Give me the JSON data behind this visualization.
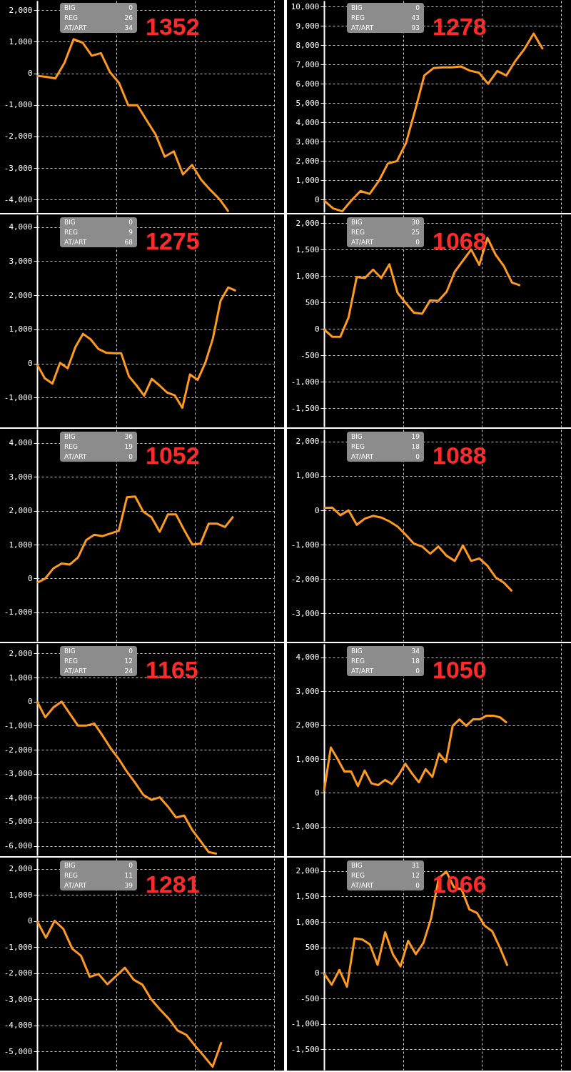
{
  "chart_data": [
    {
      "type": "line",
      "title": "1352",
      "annotations": [
        "BIG",
        "0",
        "REG",
        "26",
        "AT/ART",
        "34"
      ],
      "grid": true,
      "tick_labels": "y",
      "ylim": [
        -4400,
        2300
      ],
      "yticks": [
        {
          "value": -4000,
          "label": "-4,000"
        },
        {
          "value": -3000,
          "label": "-3,000"
        },
        {
          "value": -2000,
          "label": "-2,000"
        },
        {
          "value": -1000,
          "label": "-1,000"
        },
        0,
        {
          "value": 1000,
          "label": "1,000"
        },
        {
          "value": 2000,
          "label": "2,000"
        }
      ],
      "categories": [
        null,
        null,
        null,
        null,
        null,
        null,
        null,
        null,
        null,
        null,
        null,
        null,
        null,
        null,
        null,
        null,
        null,
        null,
        null,
        null,
        null,
        null,
        null,
        null,
        null,
        null,
        null
      ],
      "series": [
        {
          "color": "#ff9a1e",
          "values": [
            -80,
            -110,
            -160,
            330,
            1080,
            970,
            560,
            640,
            35,
            -310,
            -1010,
            -1010,
            -1480,
            -1940,
            -2640,
            -2470,
            -3200,
            -2900,
            -3370,
            -3690,
            -3980,
            -4380,
            null,
            null,
            null,
            null,
            null
          ]
        }
      ]
    },
    {
      "type": "line",
      "title": "1278",
      "annotations": [
        "BIG",
        "0",
        "REG",
        "43",
        "AT/ART",
        "93"
      ],
      "grid": true,
      "tick_labels": "y",
      "ylim": [
        -650,
        10300
      ],
      "yticks": [
        0,
        {
          "value": 1000,
          "label": "1,000"
        },
        {
          "value": 2000,
          "label": "2,000"
        },
        {
          "value": 3000,
          "label": "3,000"
        },
        {
          "value": 4000,
          "label": "4,000"
        },
        {
          "value": 5000,
          "label": "5,000"
        },
        {
          "value": 6000,
          "label": "6,000"
        },
        {
          "value": 7000,
          "label": "7,000"
        },
        {
          "value": 8000,
          "label": "8,000"
        },
        {
          "value": 9000,
          "label": "9,000"
        },
        {
          "value": 10000,
          "label": "10,000"
        }
      ],
      "categories": [
        null,
        null,
        null,
        null,
        null,
        null,
        null,
        null,
        null,
        null,
        null,
        null,
        null,
        null,
        null,
        null,
        null,
        null,
        null,
        null,
        null,
        null,
        null,
        null,
        null,
        null,
        null
      ],
      "series": [
        {
          "color": "#ff9a1e",
          "values": [
            -40,
            -450,
            -600,
            -40,
            450,
            300,
            960,
            1870,
            2000,
            2940,
            4640,
            6430,
            6810,
            6850,
            6850,
            6900,
            6680,
            6570,
            6000,
            6660,
            6430,
            7190,
            7810,
            8600,
            7790,
            null,
            null
          ]
        }
      ]
    },
    {
      "type": "line",
      "title": "1275",
      "annotations": [
        "BIG",
        "0",
        "REG",
        "9",
        "AT/ART",
        "68"
      ],
      "grid": true,
      "tick_labels": "y",
      "ylim": [
        -1850,
        4350
      ],
      "yticks": [
        {
          "value": -1000,
          "label": "-1,000"
        },
        0,
        {
          "value": 1000,
          "label": "1,000"
        },
        {
          "value": 2000,
          "label": "2,000"
        },
        {
          "value": 3000,
          "label": "3,000"
        },
        {
          "value": 4000,
          "label": "4,000"
        }
      ],
      "categories": [
        null,
        null,
        null,
        null,
        null,
        null,
        null,
        null,
        null,
        null,
        null,
        null,
        null,
        null,
        null,
        null,
        null,
        null,
        null,
        null,
        null,
        null,
        null,
        null,
        null,
        null,
        null,
        null,
        null,
        null,
        null,
        null
      ],
      "series": [
        {
          "color": "#ff9a1e",
          "values": [
            -30,
            -430,
            -590,
            20,
            -140,
            480,
            870,
            710,
            430,
            320,
            300,
            300,
            -370,
            -640,
            -940,
            -450,
            -640,
            -850,
            -930,
            -1300,
            -320,
            -480,
            20,
            740,
            1840,
            2230,
            2130,
            null,
            null,
            null,
            null,
            null
          ]
        }
      ]
    },
    {
      "type": "line",
      "title": "1068",
      "annotations": [
        "BIG",
        "30",
        "REG",
        "25",
        "AT/ART",
        "0"
      ],
      "grid": true,
      "tick_labels": "y",
      "ylim": [
        -1850,
        2150
      ],
      "yticks": [
        {
          "value": -1500,
          "label": "-1,500"
        },
        {
          "value": -1000,
          "label": "-1,000"
        },
        -500,
        0,
        500,
        {
          "value": 1000,
          "label": "1,000"
        },
        {
          "value": 1500,
          "label": "1,500"
        },
        {
          "value": 2000,
          "label": "2,000"
        }
      ],
      "categories": [
        null,
        null,
        null,
        null,
        null,
        null,
        null,
        null,
        null,
        null,
        null,
        null,
        null,
        null,
        null,
        null,
        null,
        null,
        null,
        null,
        null,
        null,
        null,
        null,
        null,
        null,
        null,
        null,
        null,
        null
      ],
      "series": [
        {
          "color": "#ff9a1e",
          "values": [
            -10,
            -150,
            -150,
            215,
            980,
            960,
            1120,
            960,
            1220,
            680,
            490,
            305,
            285,
            540,
            530,
            700,
            1080,
            1290,
            1500,
            1210,
            1720,
            1400,
            1190,
            875,
            820,
            null,
            null,
            null,
            null,
            null
          ]
        }
      ]
    },
    {
      "type": "line",
      "title": "1052",
      "annotations": [
        "BIG",
        "36",
        "REG",
        "19",
        "AT/ART",
        "0"
      ],
      "grid": true,
      "tick_labels": "y",
      "ylim": [
        -1850,
        4400
      ],
      "yticks": [
        {
          "value": -1000,
          "label": "-1,000"
        },
        0,
        {
          "value": 1000,
          "label": "1,000"
        },
        {
          "value": 2000,
          "label": "2,000"
        },
        {
          "value": 3000,
          "label": "3,000"
        },
        {
          "value": 4000,
          "label": "4,000"
        }
      ],
      "categories": [
        null,
        null,
        null,
        null,
        null,
        null,
        null,
        null,
        null,
        null,
        null,
        null,
        null,
        null,
        null,
        null,
        null,
        null,
        null,
        null,
        null,
        null,
        null,
        null,
        null,
        null,
        null,
        null,
        null,
        null
      ],
      "series": [
        {
          "color": "#ff9a1e",
          "values": [
            -130,
            0,
            300,
            440,
            410,
            620,
            1130,
            1290,
            1250,
            1330,
            1410,
            2400,
            2420,
            1970,
            1810,
            1380,
            1890,
            1890,
            1430,
            1000,
            1030,
            1620,
            1620,
            1520,
            1830,
            null,
            null,
            null,
            null,
            null
          ]
        }
      ]
    },
    {
      "type": "line",
      "title": "1088",
      "annotations": [
        "BIG",
        "19",
        "REG",
        "18",
        "AT/ART",
        "0"
      ],
      "grid": true,
      "tick_labels": "y",
      "ylim": [
        -3800,
        2350
      ],
      "yticks": [
        {
          "value": -3000,
          "label": "-3,000"
        },
        {
          "value": -2000,
          "label": "-2,000"
        },
        {
          "value": -1000,
          "label": "-1,000"
        },
        0,
        {
          "value": 1000,
          "label": "1,000"
        },
        {
          "value": 2000,
          "label": "2,000"
        }
      ],
      "categories": [
        null,
        null,
        null,
        null,
        null,
        null,
        null,
        null,
        null,
        null,
        null,
        null,
        null,
        null,
        null,
        null,
        null,
        null,
        null,
        null,
        null,
        null,
        null,
        null,
        null,
        null,
        null,
        null,
        null,
        null
      ],
      "series": [
        {
          "color": "#ff9a1e",
          "values": [
            70,
            80,
            -140,
            0,
            -420,
            -240,
            -160,
            -210,
            -320,
            -470,
            -710,
            -970,
            -1050,
            -1260,
            -1050,
            -1320,
            -1470,
            -1020,
            -1470,
            -1400,
            -1610,
            -1950,
            -2100,
            -2350,
            null,
            null,
            null,
            null,
            null,
            null
          ]
        }
      ]
    },
    {
      "type": "line",
      "title": "1165",
      "annotations": [
        "BIG",
        "0",
        "REG",
        "12",
        "AT/ART",
        "24"
      ],
      "grid": true,
      "tick_labels": "y",
      "ylim": [
        -6400,
        2400
      ],
      "yticks": [
        {
          "value": -6000,
          "label": "-6,000"
        },
        {
          "value": -5000,
          "label": "-5,000"
        },
        {
          "value": -4000,
          "label": "-4,000"
        },
        {
          "value": -3000,
          "label": "-3,000"
        },
        {
          "value": -2000,
          "label": "-2,000"
        },
        {
          "value": -1000,
          "label": "-1,000"
        },
        0,
        {
          "value": 1000,
          "label": "1,000"
        },
        {
          "value": 2000,
          "label": "2,000"
        }
      ],
      "categories": [
        null,
        null,
        null,
        null,
        null,
        null,
        null,
        null,
        null,
        null,
        null,
        null,
        null,
        null,
        null,
        null,
        null,
        null,
        null,
        null,
        null,
        null,
        null,
        null,
        null,
        null,
        null,
        null,
        null,
        null
      ],
      "series": [
        {
          "color": "#ff9a1e",
          "values": [
            0,
            -650,
            -240,
            0,
            -500,
            -1000,
            -1000,
            -910,
            -1410,
            -1940,
            -2390,
            -2920,
            -3380,
            -3880,
            -4090,
            -3980,
            -4360,
            -4820,
            -4740,
            -5350,
            -5800,
            -6260,
            -6330,
            null,
            null,
            null,
            null,
            null,
            null,
            null
          ]
        }
      ]
    },
    {
      "type": "line",
      "title": "1050",
      "annotations": [
        "BIG",
        "34",
        "REG",
        "18",
        "AT/ART",
        "0"
      ],
      "grid": true,
      "tick_labels": "y",
      "ylim": [
        -1850,
        4400
      ],
      "yticks": [
        {
          "value": -1000,
          "label": "-1,000"
        },
        0,
        {
          "value": 1000,
          "label": "1,000"
        },
        {
          "value": 2000,
          "label": "2,000"
        },
        {
          "value": 3000,
          "label": "3,000"
        },
        {
          "value": 4000,
          "label": "4,000"
        }
      ],
      "categories": [
        null,
        null,
        null,
        null,
        null,
        null,
        null,
        null,
        null,
        null,
        null,
        null,
        null,
        null,
        null,
        null,
        null,
        null,
        null,
        null,
        null,
        null,
        null,
        null,
        null,
        null,
        null,
        null,
        null,
        null,
        null,
        null,
        null,
        null,
        null,
        null
      ],
      "series": [
        {
          "color": "#ff9a1e",
          "values": [
            40,
            1340,
            1000,
            630,
            630,
            200,
            660,
            280,
            230,
            380,
            260,
            520,
            860,
            570,
            310,
            700,
            470,
            1160,
            910,
            1980,
            2170,
            1980,
            2170,
            2170,
            2280,
            2280,
            2230,
            2070,
            null,
            null,
            null,
            null,
            null,
            null,
            null,
            null
          ]
        }
      ]
    },
    {
      "type": "line",
      "title": "1281",
      "annotations": [
        "BIG",
        "0",
        "REG",
        "11",
        "AT/ART",
        "39"
      ],
      "grid": true,
      "tick_labels": "y",
      "ylim": [
        -5700,
        2400
      ],
      "yticks": [
        {
          "value": -5000,
          "label": "-5,000"
        },
        {
          "value": -4000,
          "label": "-4,000"
        },
        {
          "value": -3000,
          "label": "-3,000"
        },
        {
          "value": -2000,
          "label": "-2,000"
        },
        {
          "value": -1000,
          "label": "-1,000"
        },
        0,
        {
          "value": 1000,
          "label": "1,000"
        },
        {
          "value": 2000,
          "label": "2,000"
        }
      ],
      "categories": [
        null,
        null,
        null,
        null,
        null,
        null,
        null,
        null,
        null,
        null,
        null,
        null,
        null,
        null,
        null,
        null,
        null,
        null,
        null,
        null,
        null,
        null,
        null,
        null,
        null,
        null,
        null,
        null
      ],
      "series": [
        {
          "color": "#ff9a1e",
          "values": [
            0,
            -640,
            10,
            -310,
            -1060,
            -1330,
            -2140,
            -2030,
            -2420,
            -2110,
            -1790,
            -2250,
            -2440,
            -3000,
            -3390,
            -3740,
            -4190,
            -4360,
            -4780,
            -5170,
            -5580,
            -4640,
            null,
            null,
            null,
            null,
            null,
            null
          ]
        }
      ]
    },
    {
      "type": "line",
      "title": "1066",
      "annotations": [
        "BIG",
        "31",
        "REG",
        "12",
        "AT/ART",
        "0"
      ],
      "grid": true,
      "tick_labels": "y",
      "ylim": [
        -1900,
        2250
      ],
      "yticks": [
        {
          "value": -1500,
          "label": "-1,500"
        },
        {
          "value": -1000,
          "label": "-1,000"
        },
        -500,
        0,
        500,
        {
          "value": 1000,
          "label": "1,000"
        },
        {
          "value": 1500,
          "label": "1,500"
        },
        {
          "value": 2000,
          "label": "2,000"
        }
      ],
      "categories": [
        null,
        null,
        null,
        null,
        null,
        null,
        null,
        null,
        null,
        null,
        null,
        null,
        null,
        null,
        null,
        null,
        null,
        null,
        null,
        null,
        null,
        null,
        null,
        null,
        null,
        null,
        null,
        null,
        null,
        null,
        null,
        null
      ],
      "series": [
        {
          "color": "#ff9a1e",
          "values": [
            -10,
            -230,
            60,
            -270,
            680,
            660,
            560,
            160,
            800,
            370,
            130,
            630,
            370,
            590,
            1070,
            1860,
            1990,
            1680,
            1640,
            1250,
            1180,
            930,
            820,
            500,
            140,
            null,
            null,
            null,
            null,
            null,
            null,
            null
          ]
        }
      ]
    }
  ]
}
